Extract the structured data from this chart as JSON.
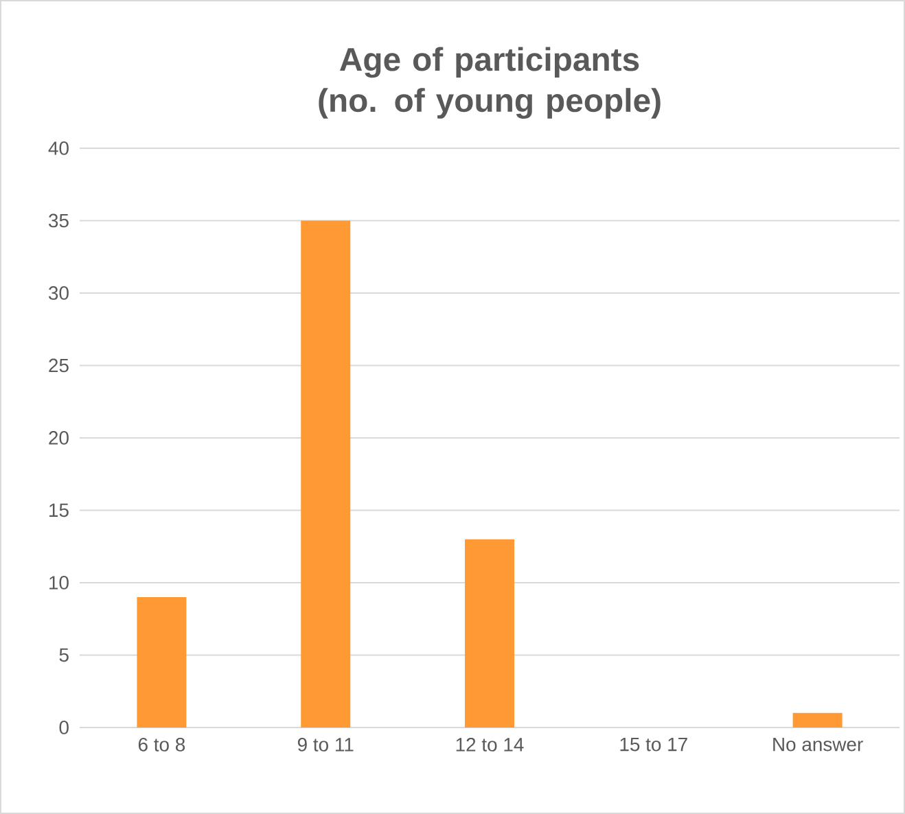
{
  "chart_data": {
    "type": "bar",
    "title": "Age of participants (no. of young people)",
    "categories": [
      "6 to 8",
      "9 to 11",
      "12 to 14",
      "15 to 17",
      "No answer"
    ],
    "values": [
      9,
      35,
      13,
      0,
      1
    ],
    "color": "#ff9933",
    "ylim": [
      0,
      40
    ],
    "yticks": [
      0,
      5,
      10,
      15,
      20,
      25,
      30,
      35,
      40
    ],
    "grid": "y"
  }
}
